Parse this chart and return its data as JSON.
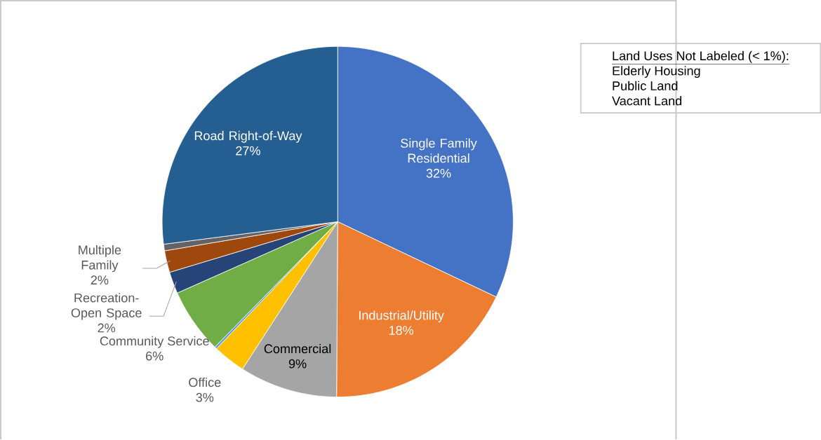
{
  "chart_data": {
    "type": "pie",
    "categories": [
      "Single Family Residential",
      "Industrial/Utility",
      "Commercial",
      "Office",
      null,
      "Community Service",
      "Recreation-Open Space",
      "Multiple Family",
      null,
      "Road Right-of-Way"
    ],
    "values": [
      32,
      18,
      9,
      3,
      0.2,
      6,
      2,
      2,
      0.6,
      27
    ],
    "colors": [
      "#4472c4",
      "#ed7d31",
      "#a5a5a5",
      "#ffc000",
      "#5b9bd5",
      "#70ad47",
      "#264478",
      "#9e480e",
      "#636363",
      "#255e91"
    ],
    "value_labels": [
      "32%",
      "18%",
      "9%",
      "3%",
      null,
      "6%",
      "2%",
      "2%",
      null,
      "27%"
    ],
    "annotations": [
      "Land Uses Not Labeled (< 1%):",
      "Elderly Housing",
      "Public Land",
      "Vacant Land"
    ]
  }
}
